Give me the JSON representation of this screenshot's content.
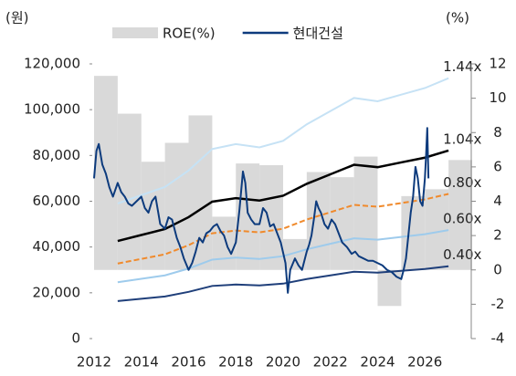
{
  "chart_data": {
    "type": "pbr_band",
    "y_unit": "(원)",
    "y2_unit": "(%)",
    "xlim": [
      2012,
      2028
    ],
    "xticks": [
      2012,
      2014,
      2016,
      2018,
      2020,
      2022,
      2024,
      2026
    ],
    "ylim": [
      0,
      120000
    ],
    "yticks": [
      0,
      {
        "value": 20000,
        "label": "20,000"
      },
      {
        "value": 40000,
        "label": "40,000"
      },
      {
        "value": 60000,
        "label": "60,000"
      },
      {
        "value": 80000,
        "label": "80,000"
      },
      {
        "value": 100000,
        "label": "100,000"
      },
      {
        "value": 120000,
        "label": "120,000"
      }
    ],
    "y2lim": [
      -4,
      12
    ],
    "y2ticks": [
      -4,
      -2,
      0,
      2,
      4,
      6,
      8,
      10,
      12
    ],
    "series": [
      {
        "name": "ROE(%)",
        "type": "bar",
        "axis": "y2",
        "color": "#d9d9d9",
        "x": [
          2012.5,
          2013.5,
          2014.5,
          2015.5,
          2016.5,
          2017.5,
          2018.5,
          2019.5,
          2020.5,
          2021.5,
          2022.5,
          2023.5,
          2024.5,
          2025.5,
          2026.5,
          2027.5
        ],
        "values": [
          11.3,
          9.1,
          6.3,
          7.4,
          9.0,
          3.1,
          6.2,
          6.1,
          1.8,
          5.7,
          5.4,
          6.6,
          -2.1,
          4.3,
          4.7,
          6.4
        ]
      },
      {
        "name": "현대건설",
        "type": "line",
        "color": "#0d3b7d",
        "x": [
          2012.0,
          2012.1,
          2012.2,
          2012.35,
          2012.5,
          2012.65,
          2012.8,
          2013.0,
          2013.15,
          2013.3,
          2013.45,
          2013.6,
          2013.8,
          2014.0,
          2014.15,
          2014.3,
          2014.45,
          2014.6,
          2014.8,
          2015.0,
          2015.15,
          2015.3,
          2015.5,
          2015.65,
          2015.8,
          2016.0,
          2016.15,
          2016.3,
          2016.45,
          2016.6,
          2016.75,
          2016.9,
          2017.05,
          2017.2,
          2017.35,
          2017.5,
          2017.65,
          2017.8,
          2018.0,
          2018.15,
          2018.3,
          2018.4,
          2018.5,
          2018.65,
          2018.8,
          2019.0,
          2019.15,
          2019.3,
          2019.45,
          2019.6,
          2019.75,
          2019.9,
          2020.1,
          2020.2,
          2020.3,
          2020.5,
          2020.65,
          2020.8,
          2021.0,
          2021.1,
          2021.2,
          2021.3,
          2021.4,
          2021.5,
          2021.6,
          2021.75,
          2021.9,
          2022.05,
          2022.2,
          2022.35,
          2022.5,
          2022.7,
          2022.9,
          2023.05,
          2023.2,
          2023.4,
          2023.6,
          2023.8,
          2024.0,
          2024.2,
          2024.4,
          2024.6,
          2024.8,
          2025.0,
          2025.1,
          2025.2,
          2025.3,
          2025.4,
          2025.5,
          2025.6,
          2025.7,
          2025.8,
          2025.9,
          2026.0,
          2026.05,
          2026.1,
          2026.15
        ],
        "values": [
          70000,
          82000,
          85000,
          76000,
          72000,
          66000,
          62000,
          68000,
          64000,
          62000,
          59000,
          58000,
          60000,
          62000,
          57000,
          55000,
          60000,
          62000,
          50000,
          48000,
          53000,
          52000,
          44000,
          40000,
          35000,
          30000,
          33000,
          38000,
          44000,
          42000,
          46000,
          47000,
          49000,
          50000,
          47000,
          45000,
          40000,
          37000,
          42000,
          56000,
          73000,
          68000,
          55000,
          52000,
          50000,
          50000,
          57000,
          55000,
          49000,
          50000,
          46000,
          42000,
          33000,
          20000,
          30000,
          35000,
          32000,
          30000,
          38000,
          41000,
          45000,
          52000,
          60000,
          57000,
          55000,
          50000,
          48000,
          52000,
          50000,
          46000,
          42000,
          40000,
          37000,
          38000,
          36000,
          35000,
          34000,
          34000,
          33000,
          32000,
          30000,
          29000,
          27000,
          26000,
          30000,
          35000,
          45000,
          55000,
          62000,
          75000,
          70000,
          60000,
          58000,
          70000,
          80000,
          92000,
          70000
        ]
      }
    ],
    "band_x": [
      2013,
      2014,
      2015,
      2016,
      2017,
      2018,
      2019,
      2020,
      2021,
      2022,
      2023,
      2024,
      2025,
      2026,
      2027
    ],
    "bands": [
      {
        "name": "1.44x",
        "color": "#c6e2f5",
        "dashed": false,
        "values": [
          59040,
          62640,
          66240,
          73440,
          82800,
          84960,
          83520,
          86400,
          93600,
          99360,
          105120,
          103680,
          106560,
          109440,
          113760
        ]
      },
      {
        "name": "1.04x",
        "color": "#000000",
        "dashed": false,
        "values": [
          42640,
          45240,
          47840,
          53040,
          59800,
          61360,
          60320,
          62400,
          67600,
          71760,
          75920,
          74880,
          76960,
          79040,
          82160
        ]
      },
      {
        "name": "0.80x",
        "color": "#f08a2c",
        "dashed": true,
        "values": [
          32800,
          34800,
          36800,
          40800,
          46000,
          47200,
          46400,
          48000,
          52000,
          55200,
          58400,
          57600,
          59200,
          60800,
          63200
        ]
      },
      {
        "name": "0.60x",
        "color": "#9ecbec",
        "dashed": false,
        "values": [
          24600,
          26100,
          27600,
          30600,
          34500,
          35400,
          34800,
          36000,
          39000,
          41400,
          43800,
          43200,
          44400,
          45600,
          47400
        ]
      },
      {
        "name": "0.40x",
        "color": "#1f3f7a",
        "dashed": false,
        "values": [
          16400,
          17400,
          18400,
          20400,
          23000,
          23600,
          23200,
          24000,
          26000,
          27600,
          29200,
          28800,
          29600,
          30400,
          31600
        ]
      }
    ]
  }
}
